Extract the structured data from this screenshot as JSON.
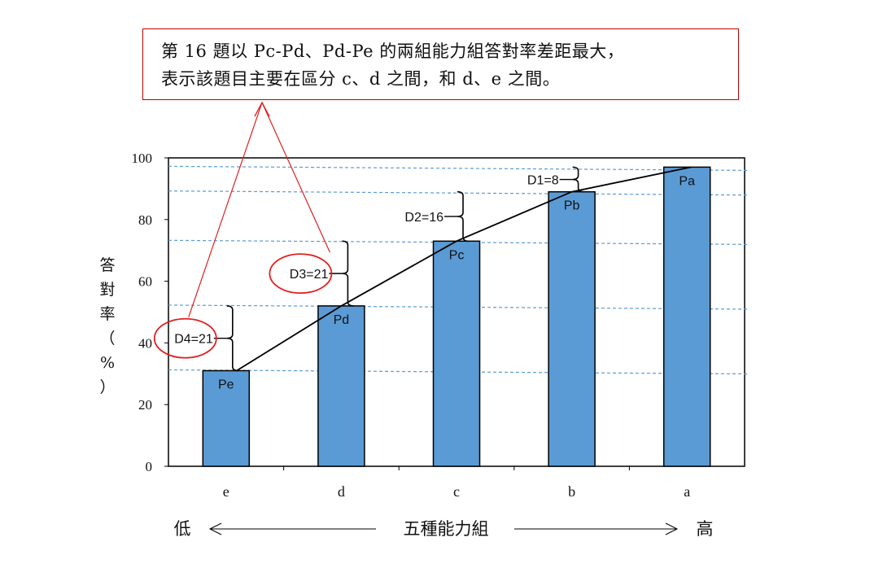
{
  "callout": {
    "line1": "第 16 題以 Pc-Pd、Pd-Pe 的兩組能力組答對率差距最大，",
    "line2": "表示該題目主要在區分 c、d 之間，和 d、e 之間。"
  },
  "chart_data": {
    "type": "bar",
    "categories": [
      "e",
      "d",
      "c",
      "b",
      "a"
    ],
    "values": [
      31,
      52,
      73,
      89,
      97
    ],
    "bar_labels": [
      "Pe",
      "Pd",
      "Pc",
      "Pb",
      "Pa"
    ],
    "ylim": [
      0,
      100
    ],
    "yticks": [
      "0",
      "20",
      "40",
      "60",
      "80",
      "100"
    ],
    "ylabel": "答對率（%）",
    "xlabel": "五種能力組",
    "x_low_label": "低",
    "x_high_label": "高",
    "differences": [
      {
        "label": "D4=21",
        "from_index": 0,
        "to_index": 1,
        "highlighted": true
      },
      {
        "label": "D3=21",
        "from_index": 1,
        "to_index": 2,
        "highlighted": true
      },
      {
        "label": "D2=16",
        "from_index": 2,
        "to_index": 3,
        "highlighted": false
      },
      {
        "label": "D1=8",
        "from_index": 3,
        "to_index": 4,
        "highlighted": false
      }
    ],
    "bar_color": "#5b9bd5",
    "gridline_color": "#5b9bd5",
    "highlight_color": "#e02020",
    "grid": false
  }
}
